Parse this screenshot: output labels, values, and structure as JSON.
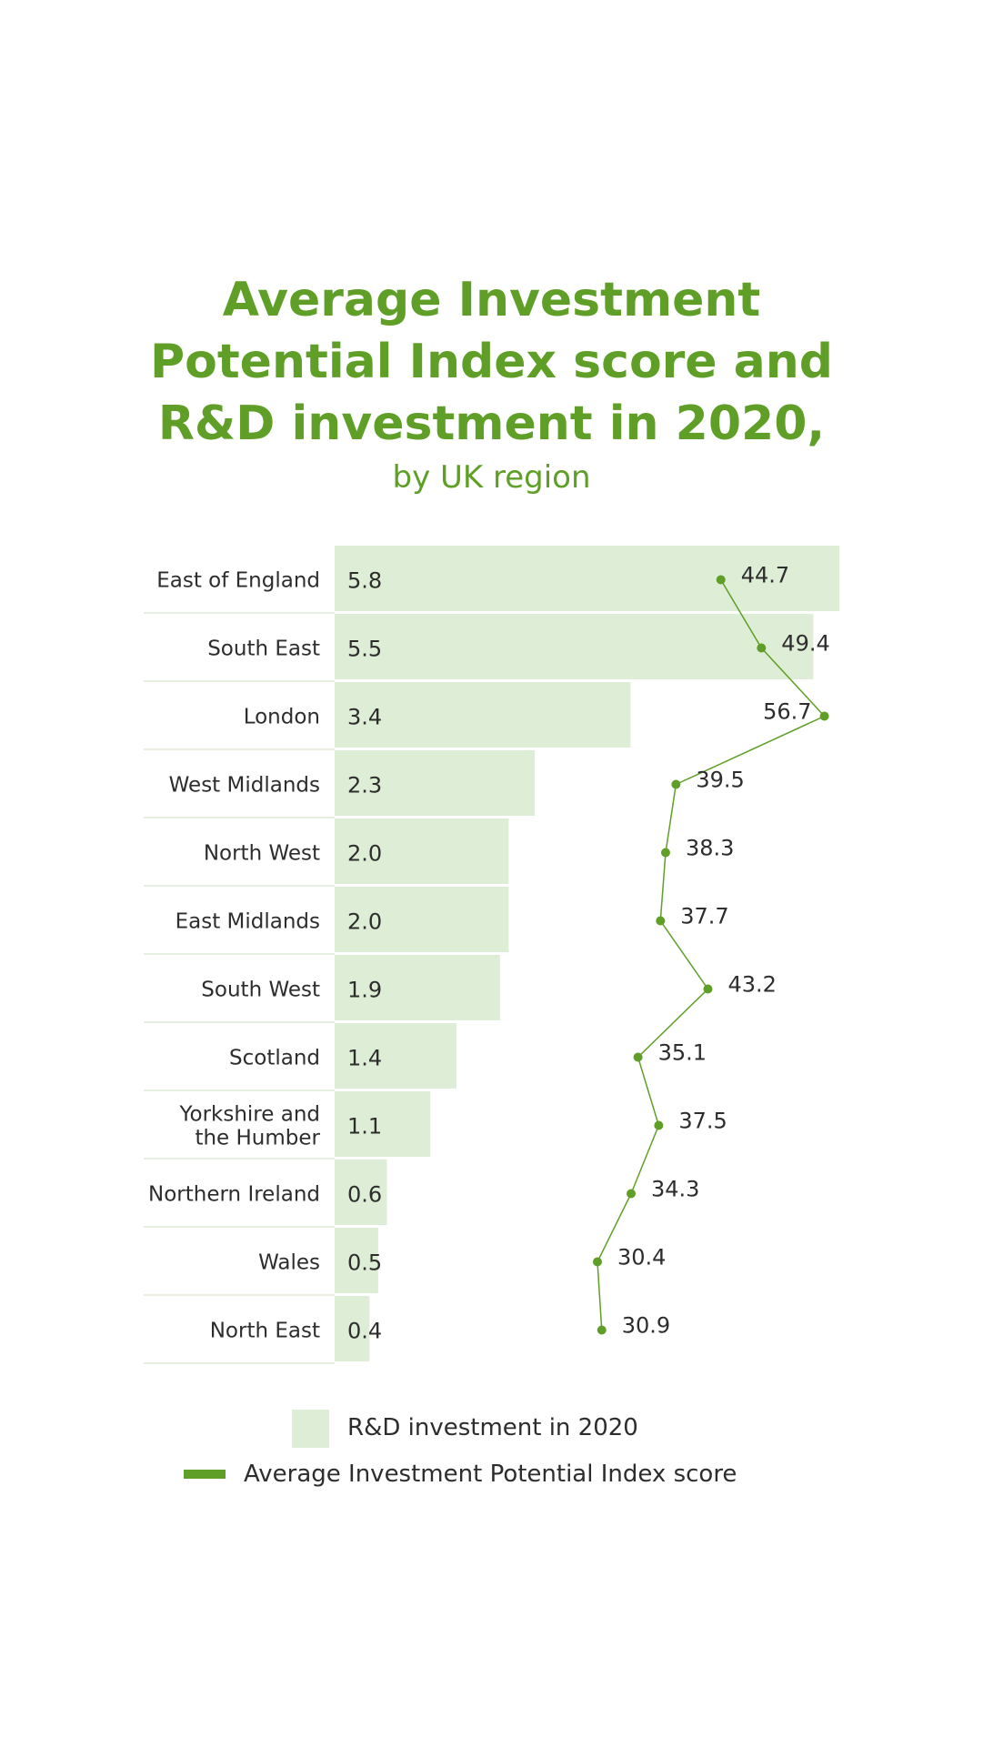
{
  "chart_data": {
    "type": "bar",
    "title": "Average Investment Potential Index score and R&D investment in 2020,",
    "subtitle": "by UK region",
    "categories": [
      "East of England",
      "South East",
      "London",
      "West Midlands",
      "North West",
      "East Midlands",
      "South West",
      "Scotland",
      "Yorkshire and the Humber",
      "Northern Ireland",
      "Wales",
      "North East"
    ],
    "series": [
      {
        "name": "R&D investment in 2020",
        "type": "bar",
        "color": "#deedd5",
        "values": [
          5.8,
          5.5,
          3.4,
          2.3,
          2.0,
          2.0,
          1.9,
          1.4,
          1.1,
          0.6,
          0.5,
          0.4
        ]
      },
      {
        "name": "Average Investment Potential Index score",
        "type": "line",
        "color": "#5f9f27",
        "values": [
          44.7,
          49.4,
          56.7,
          39.5,
          38.3,
          37.7,
          43.2,
          35.1,
          37.5,
          34.3,
          30.4,
          30.9
        ]
      }
    ],
    "orientation": "horizontal",
    "grid": false,
    "legend_position": "bottom"
  }
}
